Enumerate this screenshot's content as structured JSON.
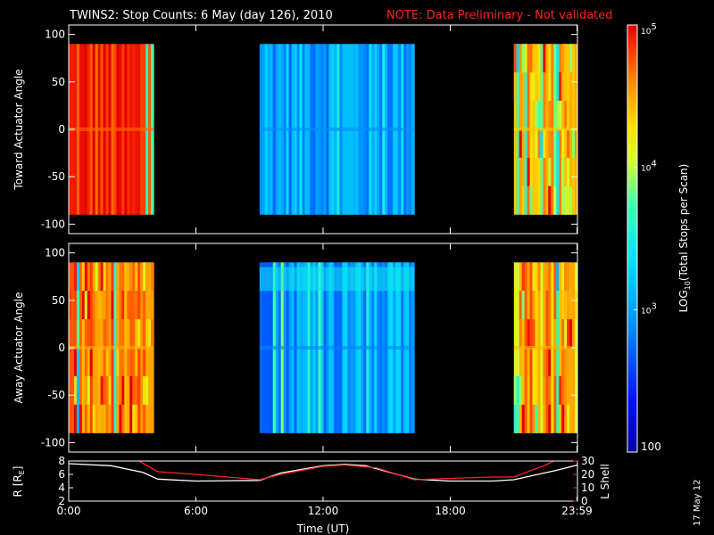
{
  "header": {
    "title": "TWINS2: Stop Counts:  6 May (day 126), 2010",
    "note": "NOTE: Data Preliminary - Not validated"
  },
  "footer": {
    "stamp": "17 May 12"
  },
  "colors": {
    "background": "#000000",
    "axes": "#ffffff",
    "note": "#ff2222",
    "r_line": "#ffffff",
    "lshell_line": "#ff2222"
  },
  "chart_data": [
    {
      "type": "heatmap",
      "ylabel": "Toward Actuator Angle",
      "ylim": [
        -110,
        110
      ],
      "yticks": [
        "100",
        "50",
        "0",
        "-50",
        "-100"
      ],
      "ytick_values": [
        100,
        50,
        0,
        -50,
        -100
      ],
      "data_time_ranges_hours": [
        [
          0,
          4.0
        ],
        [
          9.0,
          16.3
        ],
        [
          21.0,
          24.0
        ]
      ],
      "angle_range": [
        -90,
        90
      ],
      "dominant_log_counts": [
        4.85,
        3.05,
        4.5
      ],
      "zscale": "log"
    },
    {
      "type": "heatmap",
      "ylabel": "Away Actuator Angle",
      "ylim": [
        -110,
        110
      ],
      "yticks": [
        "100",
        "50",
        "0",
        "-50",
        "-100"
      ],
      "ytick_values": [
        100,
        50,
        0,
        -50,
        -100
      ],
      "data_time_ranges_hours": [
        [
          0,
          4.0
        ],
        [
          9.0,
          16.3
        ],
        [
          21.0,
          24.0
        ]
      ],
      "angle_range": [
        -90,
        90
      ],
      "dominant_log_counts": [
        4.6,
        3.0,
        4.6
      ],
      "zscale": "log"
    },
    {
      "type": "line",
      "ylabel_left": "R [R",
      "ylabel_left_sub": "E",
      "ylabel_left_end": "]",
      "ylabel_right": "L Shell",
      "ylim_left": [
        2,
        8
      ],
      "ylim_right": [
        0,
        30
      ],
      "yticks_left": [
        "8",
        "6",
        "4",
        "2"
      ],
      "yticks_left_values": [
        8,
        6,
        4,
        2
      ],
      "yticks_right": [
        "30",
        "20",
        "10",
        "0"
      ],
      "yticks_right_values": [
        30,
        20,
        10,
        0
      ],
      "xlabel": "Time (UT)",
      "xlim": [
        0,
        24
      ],
      "xticks": [
        "0:00",
        "6:00",
        "12:00",
        "18:00",
        "23:59"
      ],
      "xtick_values": [
        0,
        6,
        12,
        18,
        23.98
      ],
      "series": [
        {
          "axis": "left",
          "x": [
            0,
            2,
            3.5,
            4.2,
            6,
            9,
            10,
            12,
            13,
            14,
            16.3,
            18,
            20,
            21,
            23,
            24
          ],
          "values": [
            7.6,
            7.3,
            6.3,
            5.3,
            5.0,
            5.1,
            6.2,
            7.3,
            7.5,
            7.3,
            5.3,
            5.0,
            5.0,
            5.2,
            6.6,
            7.4
          ]
        },
        {
          "axis": "right",
          "x": [
            3.2,
            4.2,
            6,
            9,
            10,
            12,
            13,
            14.5,
            16.3,
            18,
            20,
            21,
            22.5,
            23
          ],
          "values": [
            31,
            22,
            20,
            16,
            20,
            26,
            27,
            25,
            16,
            17,
            18,
            18,
            27,
            31
          ]
        }
      ]
    }
  ],
  "colorbar": {
    "label_parts": [
      "LOG",
      "10",
      "(Total Stops per Scan)"
    ],
    "ticks": [
      {
        "log": 5,
        "base": "10",
        "exp": "5"
      },
      {
        "log": 4,
        "base": "10",
        "exp": "4"
      },
      {
        "log": 3,
        "base": "10",
        "exp": "3"
      },
      {
        "log": 2,
        "text": "100"
      }
    ],
    "zlim": [
      2,
      5
    ]
  }
}
